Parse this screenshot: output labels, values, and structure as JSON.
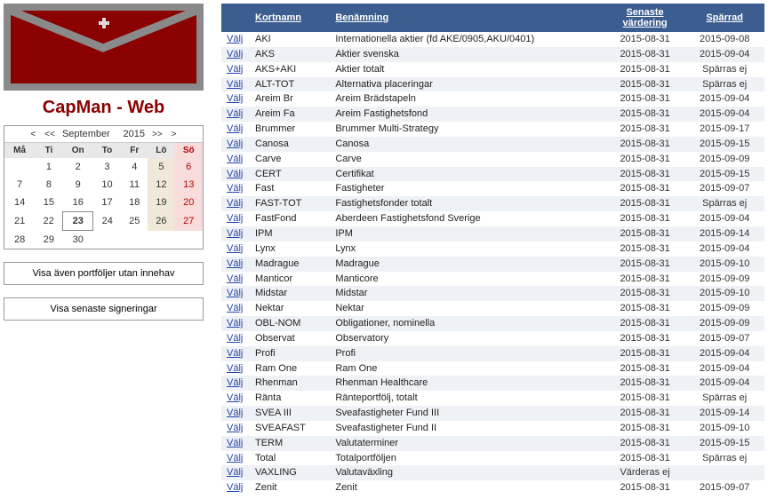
{
  "colors": {
    "header_bg": "#3b5d8f",
    "title_color": "#8b0000",
    "link": "#2244aa",
    "alt_row": "#eef1f5"
  },
  "app_title": "CapMan - Web",
  "calendar": {
    "nav_first": "<",
    "nav_prev": "<<",
    "month": "September",
    "year": "2015",
    "nav_next": ">>",
    "nav_last": ">",
    "dow": [
      "Må",
      "Ti",
      "On",
      "To",
      "Fr",
      "Lö",
      "Sö"
    ],
    "weeks": [
      [
        "",
        "1",
        "2",
        "3",
        "4",
        "5",
        "6"
      ],
      [
        "7",
        "8",
        "9",
        "10",
        "11",
        "12",
        "13"
      ],
      [
        "14",
        "15",
        "16",
        "17",
        "18",
        "19",
        "20"
      ],
      [
        "21",
        "22",
        "23",
        "24",
        "25",
        "26",
        "27"
      ],
      [
        "28",
        "29",
        "30",
        "",
        "",
        "",
        ""
      ]
    ],
    "today": "23"
  },
  "buttons": {
    "b1": "Visa även portföljer utan innehav",
    "b2": "Visa senaste signeringar"
  },
  "table": {
    "select_label": "Välj",
    "headers": {
      "kort": "Kortnamn",
      "ben": "Benämning",
      "senaste1": "Senaste",
      "senaste2": "värdering",
      "sparrad": "Spärrad"
    },
    "rows": [
      {
        "k": "AKI",
        "b": "Internationella aktier (fd AKE/0905,AKU/0401)",
        "d": "2015-08-31",
        "s": "2015-09-08"
      },
      {
        "k": "AKS",
        "b": "Aktier svenska",
        "d": "2015-08-31",
        "s": "2015-09-04"
      },
      {
        "k": "AKS+AKI",
        "b": "Aktier totalt",
        "d": "2015-08-31",
        "s": "Spärras ej"
      },
      {
        "k": "ALT-TOT",
        "b": "Alternativa placeringar",
        "d": "2015-08-31",
        "s": "Spärras ej"
      },
      {
        "k": "Areim Br",
        "b": "Areim Brädstapeln",
        "d": "2015-08-31",
        "s": "2015-09-04"
      },
      {
        "k": "Areim Fa",
        "b": "Areim Fastighetsfond",
        "d": "2015-08-31",
        "s": "2015-09-04"
      },
      {
        "k": "Brummer",
        "b": "Brummer Multi-Strategy",
        "d": "2015-08-31",
        "s": "2015-09-17"
      },
      {
        "k": "Canosa",
        "b": "Canosa",
        "d": "2015-08-31",
        "s": "2015-09-15"
      },
      {
        "k": "Carve",
        "b": "Carve",
        "d": "2015-08-31",
        "s": "2015-09-09"
      },
      {
        "k": "CERT",
        "b": "Certifikat",
        "d": "2015-08-31",
        "s": "2015-09-15"
      },
      {
        "k": "Fast",
        "b": "Fastigheter",
        "d": "2015-08-31",
        "s": "2015-09-07"
      },
      {
        "k": "FAST-TOT",
        "b": "Fastighetsfonder totalt",
        "d": "2015-08-31",
        "s": "Spärras ej"
      },
      {
        "k": "FastFond",
        "b": "Aberdeen Fastighetsfond Sverige",
        "d": "2015-08-31",
        "s": "2015-09-04"
      },
      {
        "k": "IPM",
        "b": "IPM",
        "d": "2015-08-31",
        "s": "2015-09-14"
      },
      {
        "k": "Lynx",
        "b": "Lynx",
        "d": "2015-08-31",
        "s": "2015-09-04"
      },
      {
        "k": "Madrague",
        "b": "Madrague",
        "d": "2015-08-31",
        "s": "2015-09-10"
      },
      {
        "k": "Manticor",
        "b": "Manticore",
        "d": "2015-08-31",
        "s": "2015-09-09"
      },
      {
        "k": "Midstar",
        "b": "Midstar",
        "d": "2015-08-31",
        "s": "2015-09-10"
      },
      {
        "k": "Nektar",
        "b": "Nektar",
        "d": "2015-08-31",
        "s": "2015-09-09"
      },
      {
        "k": "OBL-NOM",
        "b": "Obligationer, nominella",
        "d": "2015-08-31",
        "s": "2015-09-09"
      },
      {
        "k": "Observat",
        "b": "Observatory",
        "d": "2015-08-31",
        "s": "2015-09-07"
      },
      {
        "k": "Profi",
        "b": "Profi",
        "d": "2015-08-31",
        "s": "2015-09-04"
      },
      {
        "k": "Ram One",
        "b": "Ram One",
        "d": "2015-08-31",
        "s": "2015-09-04"
      },
      {
        "k": "Rhenman",
        "b": "Rhenman Healthcare",
        "d": "2015-08-31",
        "s": "2015-09-04"
      },
      {
        "k": "Ränta",
        "b": "Ränteportfölj, totalt",
        "d": "2015-08-31",
        "s": "Spärras ej"
      },
      {
        "k": "SVEA III",
        "b": "Sveafastigheter Fund III",
        "d": "2015-08-31",
        "s": "2015-09-14"
      },
      {
        "k": "SVEAFAST",
        "b": "Sveafastigheter Fund II",
        "d": "2015-08-31",
        "s": "2015-09-10"
      },
      {
        "k": "TERM",
        "b": "Valutaterminer",
        "d": "2015-08-31",
        "s": "2015-09-15"
      },
      {
        "k": "Total",
        "b": "Totalportföljen",
        "d": "2015-08-31",
        "s": "Spärras ej"
      },
      {
        "k": "VAXLING",
        "b": "Valutaväxling",
        "d": "Värderas ej",
        "s": ""
      },
      {
        "k": "Zenit",
        "b": "Zenit",
        "d": "2015-08-31",
        "s": "2015-09-07"
      }
    ]
  }
}
